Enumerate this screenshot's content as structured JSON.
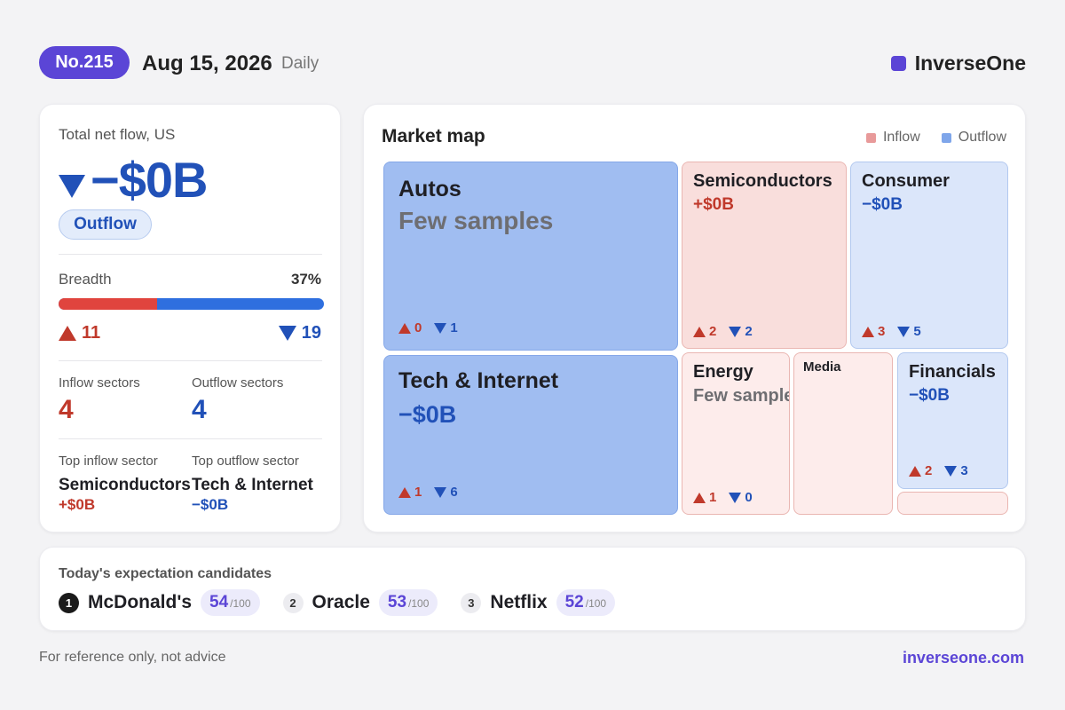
{
  "header": {
    "issue": "No.215",
    "date": "Aug 15, 2026",
    "frequency": "Daily",
    "brand": "InverseOne",
    "brand_color": "#5b45d6"
  },
  "summary": {
    "label": "Total net flow, US",
    "net_flow": "−$0B",
    "direction": "Outflow",
    "breadth_label": "Breadth",
    "breadth_pct": "37%",
    "breadth_fraction": 0.37,
    "up_count": "11",
    "down_count": "19",
    "inflow_sectors_label": "Inflow sectors",
    "inflow_sectors": "4",
    "outflow_sectors_label": "Outflow sectors",
    "outflow_sectors": "4",
    "top_inflow_label": "Top inflow sector",
    "top_inflow_name": "Semiconductors",
    "top_inflow_value": "+$0B",
    "top_outflow_label": "Top outflow sector",
    "top_outflow_name": "Tech & Internet",
    "top_outflow_value": "−$0B"
  },
  "market_map": {
    "title": "Market map",
    "legend_inflow": "Inflow",
    "legend_outflow": "Outflow",
    "inflow_color": "#e89a9a",
    "outflow_color": "#7fa6ea",
    "tiles": {
      "autos": {
        "name": "Autos",
        "sub": "Few samples",
        "up": "0",
        "down": "1"
      },
      "semiconductors": {
        "name": "Semiconductors",
        "sub": "+$0B",
        "up": "2",
        "down": "2"
      },
      "consumer": {
        "name": "Consumer",
        "sub": "−$0B",
        "up": "3",
        "down": "5"
      },
      "tech": {
        "name": "Tech & Internet",
        "sub": "−$0B",
        "up": "1",
        "down": "6"
      },
      "energy": {
        "name": "Energy",
        "sub": "Few samples",
        "up": "1",
        "down": "0"
      },
      "media": {
        "name": "Media"
      },
      "financials": {
        "name": "Financials",
        "sub": "−$0B",
        "up": "2",
        "down": "3"
      }
    }
  },
  "candidates": {
    "title": "Today's expectation candidates",
    "items": [
      {
        "rank": "1",
        "name": "McDonald's",
        "score": "54",
        "max": "/100"
      },
      {
        "rank": "2",
        "name": "Oracle",
        "score": "53",
        "max": "/100"
      },
      {
        "rank": "3",
        "name": "Netflix",
        "score": "52",
        "max": "/100"
      }
    ]
  },
  "footer": {
    "note": "For reference only, not advice",
    "link": "inverseone.com"
  }
}
